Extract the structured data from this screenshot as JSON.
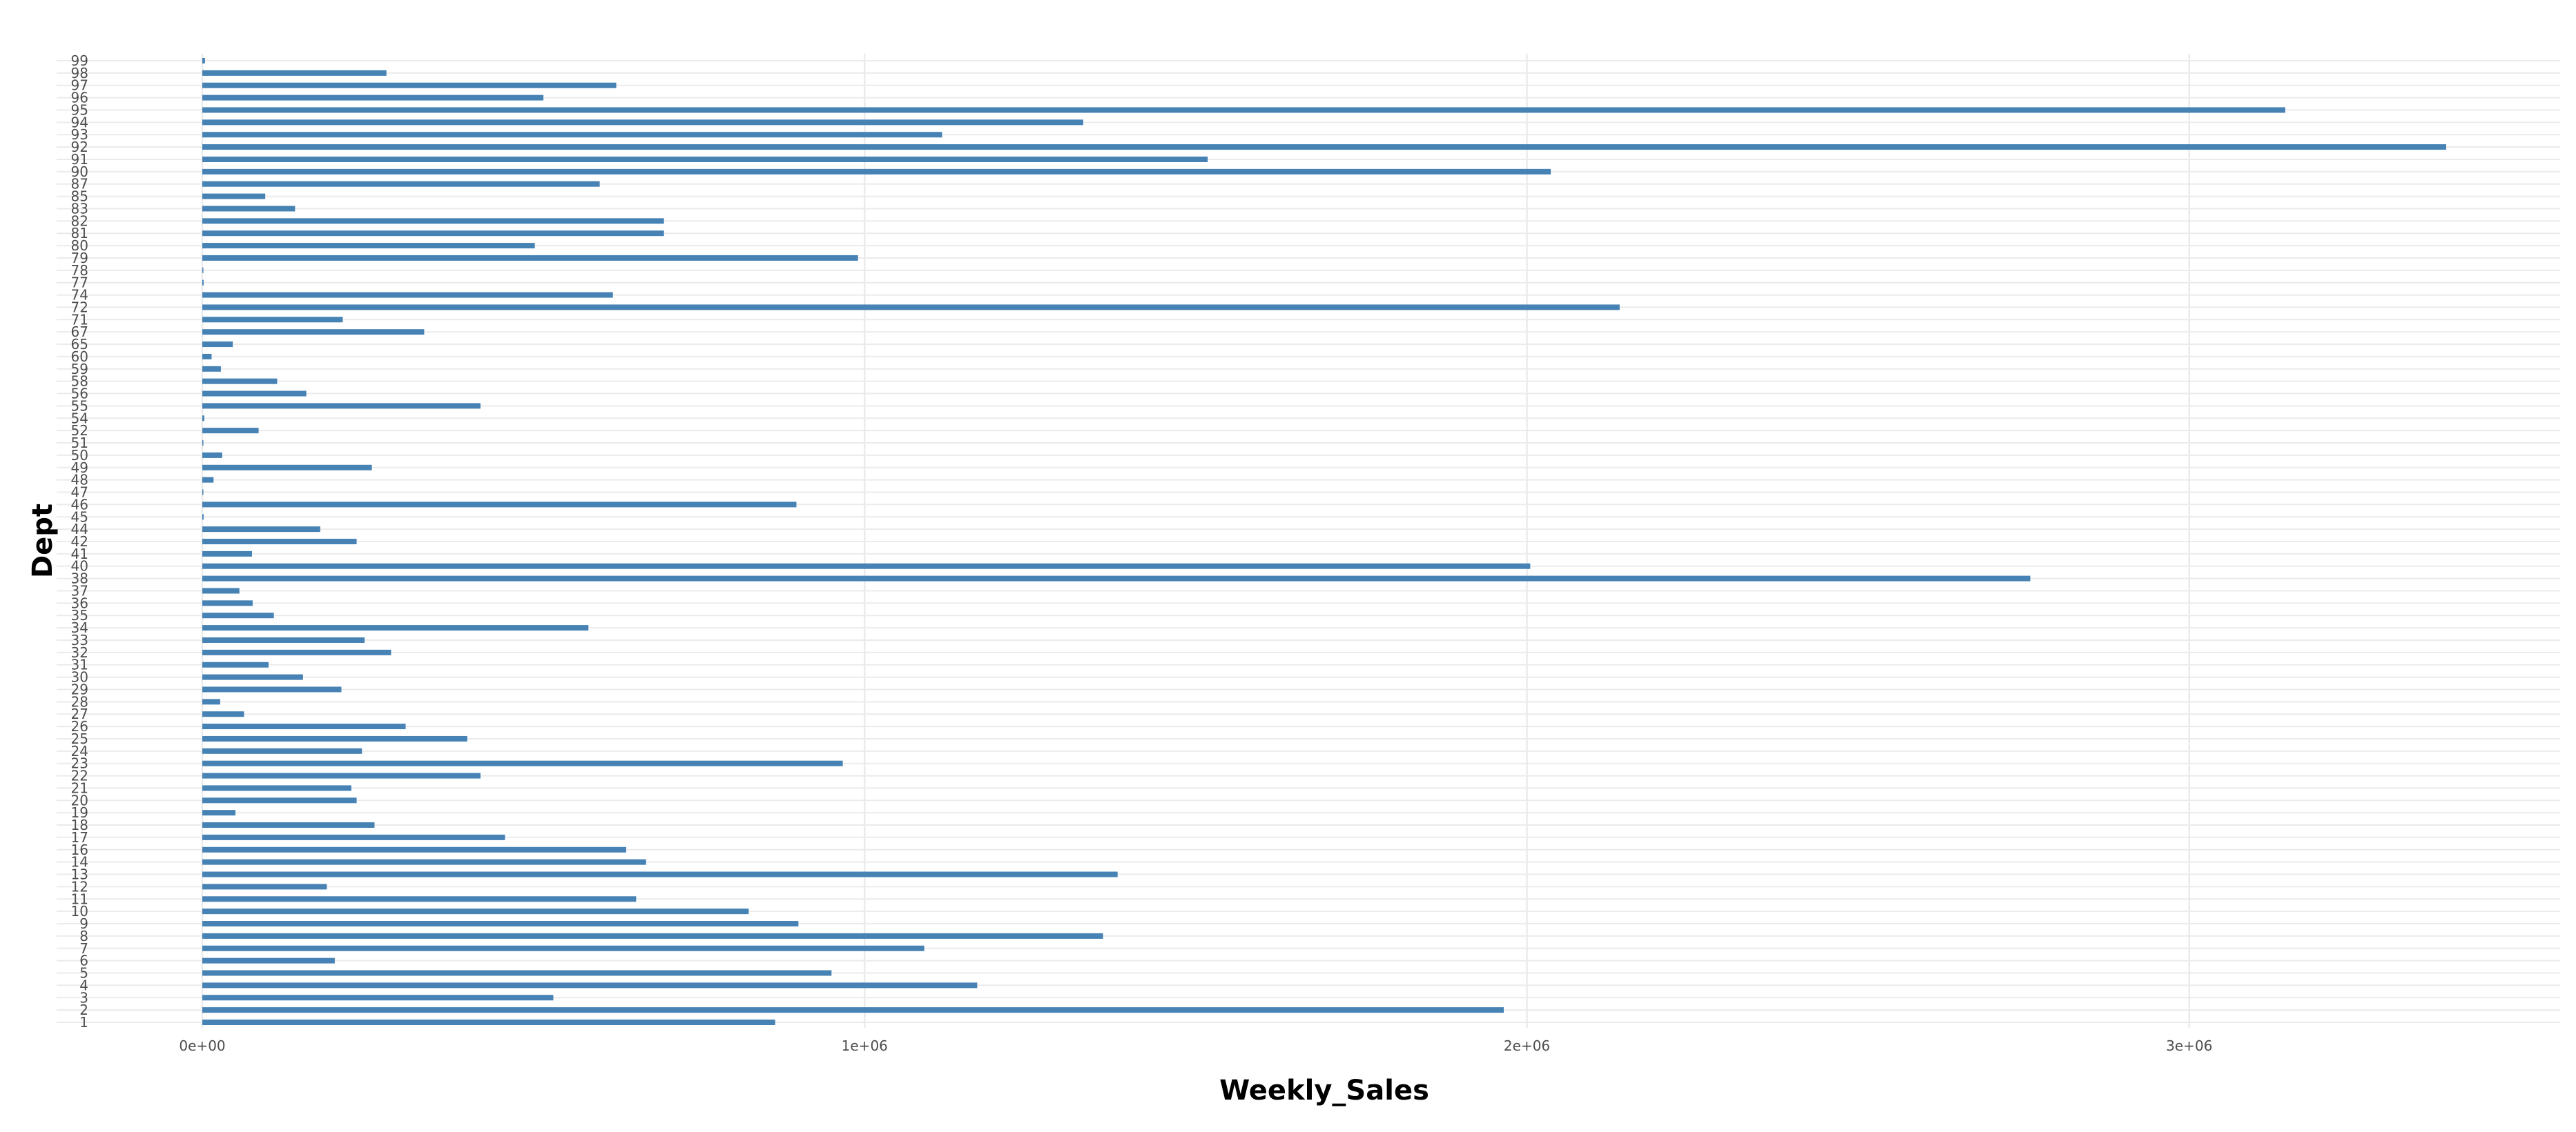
{
  "chart_data": {
    "type": "bar",
    "orientation": "horizontal",
    "xlabel": "Weekly_Sales",
    "ylabel": "Dept",
    "xlim": [
      -220000,
      3560000
    ],
    "x_ticks": [
      {
        "value": 0,
        "label": "0e+00"
      },
      {
        "value": 1000000,
        "label": "1e+06"
      },
      {
        "value": 2000000,
        "label": "2e+06"
      },
      {
        "value": 3000000,
        "label": "3e+06"
      }
    ],
    "grid": true,
    "bar_color": "#4682B4",
    "categories": [
      "1",
      "2",
      "3",
      "4",
      "5",
      "6",
      "7",
      "8",
      "9",
      "10",
      "11",
      "12",
      "13",
      "14",
      "16",
      "17",
      "18",
      "19",
      "20",
      "21",
      "22",
      "23",
      "24",
      "25",
      "26",
      "27",
      "28",
      "29",
      "30",
      "31",
      "32",
      "33",
      "34",
      "35",
      "36",
      "37",
      "38",
      "40",
      "41",
      "42",
      "44",
      "45",
      "46",
      "47",
      "48",
      "49",
      "50",
      "51",
      "52",
      "54",
      "55",
      "56",
      "58",
      "59",
      "60",
      "65",
      "67",
      "71",
      "72",
      "74",
      "77",
      "78",
      "79",
      "80",
      "81",
      "82",
      "83",
      "85",
      "87",
      "90",
      "91",
      "92",
      "93",
      "94",
      "95",
      "96",
      "97",
      "98",
      "99"
    ],
    "values": [
      865000,
      1965000,
      530000,
      1170000,
      950000,
      200000,
      1090000,
      1360000,
      900000,
      825000,
      655000,
      188000,
      1382000,
      670000,
      640000,
      457000,
      260000,
      50000,
      233000,
      225000,
      420000,
      967000,
      241000,
      400000,
      307000,
      63000,
      27000,
      210000,
      152000,
      100000,
      285000,
      245000,
      583000,
      108000,
      76000,
      56000,
      2760000,
      2005000,
      75000,
      233000,
      178000,
      2000,
      897000,
      500,
      17000,
      256000,
      30000,
      200,
      85000,
      3000,
      420000,
      157000,
      113000,
      28000,
      14000,
      46000,
      335000,
      212000,
      2140000,
      620000,
      2000,
      200,
      990000,
      502000,
      697000,
      697000,
      140000,
      95000,
      600000,
      2036000,
      1518000,
      3388000,
      1117000,
      1330000,
      3145000,
      515000,
      625000,
      278000,
      4000
    ]
  }
}
